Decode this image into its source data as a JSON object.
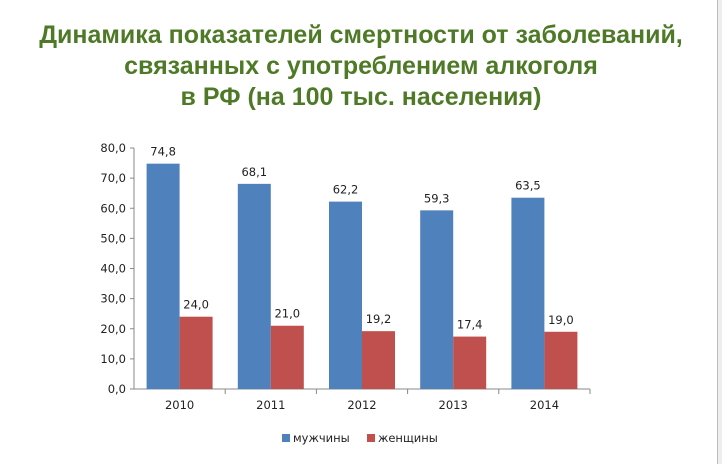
{
  "chart_data": {
    "type": "bar",
    "title": [
      "Динамика показателей смертности от заболеваний,",
      "связанных с употреблением алкоголя",
      "в РФ (на 100 тыс. населения)"
    ],
    "categories": [
      "2010",
      "2011",
      "2012",
      "2013",
      "2014"
    ],
    "series": [
      {
        "name": "мужчины",
        "color": "#4f81bd",
        "values": [
          74.8,
          68.1,
          62.2,
          59.3,
          63.5
        ],
        "labels": [
          "74,8",
          "68,1",
          "62,2",
          "59,3",
          "63,5"
        ]
      },
      {
        "name": "женщины",
        "color": "#c0504d",
        "values": [
          24.0,
          21.0,
          19.2,
          17.4,
          19.0
        ],
        "labels": [
          "24,0",
          "21,0",
          "19,2",
          "17,4",
          "19,0"
        ]
      }
    ],
    "yticks": [
      "0,0",
      "10,0",
      "20,0",
      "30,0",
      "40,0",
      "50,0",
      "60,0",
      "70,0",
      "80,0"
    ],
    "ylim": [
      0,
      80
    ],
    "xlabel": "",
    "ylabel": "",
    "grid": false,
    "legend": "bottom"
  }
}
